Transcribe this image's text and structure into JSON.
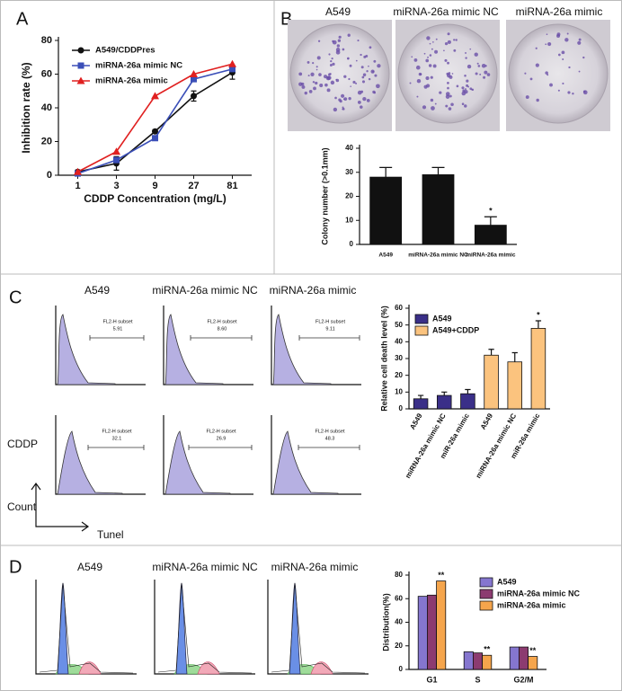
{
  "panels": {
    "labels": [
      "A",
      "B",
      "C",
      "D"
    ],
    "b_images": [
      "A549",
      "miRNA-26a mimic NC",
      "miRNA-26a mimic"
    ],
    "c_columns": [
      "A549",
      "miRNA-26a mimic NC",
      "miRNA-26a mimic"
    ],
    "c_gate_label": "FL2-H subset",
    "c_gate_values": [
      "5.91",
      "8.60",
      "9.11",
      "32.1",
      "26.9",
      "48.3"
    ],
    "c_row_label": "CDDP",
    "c_y_axis": "Count",
    "c_x_axis": "Tunel",
    "d_columns": [
      "A549",
      "miRNA-26a mimic NC",
      "miRNA-26a mimic"
    ]
  },
  "chart_data": [
    {
      "type": "line",
      "x_label": "CDDP Concentration (mg/L)",
      "y_label": "Inhibition rate (%)",
      "categories": [
        "1",
        "3",
        "9",
        "27",
        "81"
      ],
      "series": [
        {
          "name": "A549/CDDPres",
          "color": "#111111",
          "marker": "circle",
          "values": [
            2,
            7,
            26,
            47,
            61
          ],
          "errors": [
            1,
            4,
            1,
            3,
            4
          ]
        },
        {
          "name": "miRNA-26a mimic NC",
          "color": "#3b4fb8",
          "marker": "square",
          "values": [
            1,
            9,
            22,
            57,
            63
          ]
        },
        {
          "name": "miRNA-26a mimic",
          "color": "#e02020",
          "marker": "triangle",
          "values": [
            2,
            14,
            47,
            60,
            66
          ]
        }
      ],
      "ylim": [
        0,
        80
      ],
      "yticks": [
        0,
        20,
        40,
        60,
        80
      ],
      "legend": "upper-left"
    },
    {
      "type": "bar",
      "y_label": "Colony number (>0.1mm)",
      "categories": [
        "A549",
        "miRNA-26a mimic NC",
        "miRNA-26a mimic"
      ],
      "series": [
        {
          "color": "#111111",
          "values": [
            28,
            29,
            8
          ],
          "errors": [
            4,
            3,
            3.5
          ],
          "annotations": [
            null,
            null,
            "*"
          ]
        }
      ],
      "ylim": [
        0,
        40
      ],
      "yticks": [
        0,
        10,
        20,
        30,
        40
      ]
    },
    {
      "type": "bar",
      "y_label": "Relative cell death level (%)",
      "categories": [
        "A549",
        "miRNA-26a mimic NC",
        "miR-26a mimic",
        "A549",
        "miRNA-26a mimic NC",
        "miR-26a mimic"
      ],
      "series": [
        {
          "name": "A549",
          "color": "#3a2f88",
          "values": [
            6,
            8,
            9,
            null,
            null,
            null
          ],
          "errors": [
            2,
            2,
            2.5,
            null,
            null,
            null
          ]
        },
        {
          "name": "A549+CDDP",
          "color": "#fbc37e",
          "values": [
            null,
            null,
            null,
            32,
            28,
            48
          ],
          "errors": [
            null,
            null,
            null,
            3.5,
            5.5,
            4.5
          ],
          "annotations": [
            null,
            null,
            null,
            null,
            null,
            "*"
          ]
        }
      ],
      "ylim": [
        0,
        60
      ],
      "yticks": [
        0,
        10,
        20,
        30,
        40,
        50,
        60
      ],
      "legend": "upper-left",
      "x_label_rotate": -60
    },
    {
      "type": "bar",
      "y_label": "Distribution(%)",
      "categories": [
        "G1",
        "S",
        "G2/M"
      ],
      "series": [
        {
          "name": "A549",
          "color": "#8576cf",
          "values": [
            62,
            15,
            19
          ]
        },
        {
          "name": "miRNA-26a mimic NC",
          "color": "#8c3b70",
          "values": [
            63,
            14,
            19
          ]
        },
        {
          "name": "miRNA-26a mimic",
          "color": "#f5a54c",
          "values": [
            75,
            12,
            11
          ],
          "annotations": [
            "**",
            "**",
            "**"
          ]
        }
      ],
      "ylim": [
        0,
        80
      ],
      "yticks": [
        0,
        20,
        40,
        60,
        80
      ],
      "legend": "upper-right"
    }
  ]
}
